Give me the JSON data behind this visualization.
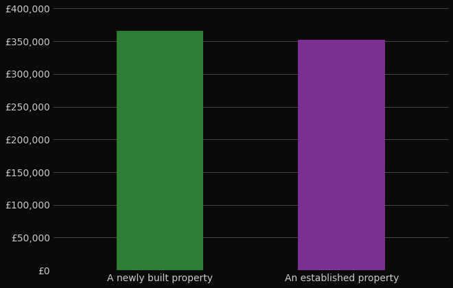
{
  "categories": [
    "A newly built property",
    "An established property"
  ],
  "values": [
    366000,
    352000
  ],
  "bar_colors": [
    "#2d7d35",
    "#7b3090"
  ],
  "background_color": "#0a0a0a",
  "text_color": "#cccccc",
  "grid_color": "#555555",
  "ylim": [
    0,
    400000
  ],
  "ytick_step": 50000,
  "bar_width": 0.22,
  "x_positions": [
    0.27,
    0.73
  ],
  "xlim": [
    0,
    1
  ],
  "xlabel": "",
  "ylabel": "",
  "ytick_fontsize": 10,
  "xtick_fontsize": 10
}
